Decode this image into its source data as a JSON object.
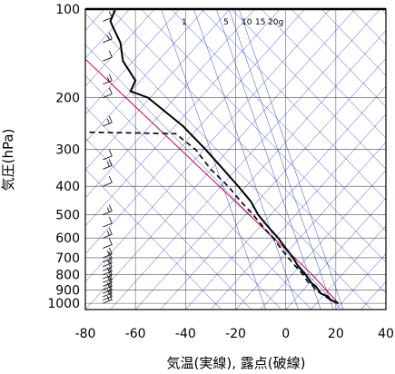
{
  "chart_data": {
    "type": "line",
    "xlabel": "気温(実線), 露点(破線)",
    "ylabel": "気圧(hPa)",
    "xlim": [
      -80,
      40
    ],
    "ylim_hpa": [
      100,
      1050
    ],
    "y_scale": "log",
    "x_ticks": [
      -80,
      -60,
      -40,
      -20,
      0,
      20,
      40
    ],
    "y_ticks": [
      100,
      200,
      300,
      400,
      500,
      600,
      700,
      800,
      900,
      1000
    ],
    "mixing_ratio_labels": [
      "1",
      "5",
      "10",
      "15",
      "20g"
    ],
    "colors": {
      "temperature": "#000000",
      "dewpoint": "#000000",
      "moist_adiabat": "#cc0044",
      "dry_adiabats": "#3344dd",
      "isotherms": "#3344dd",
      "mixing_ratio": "#3344dd",
      "grid": "#000000"
    },
    "series": [
      {
        "name": "気温",
        "style": "solid",
        "points": [
          [
            21,
            1000
          ],
          [
            18,
            975
          ],
          [
            17,
            950
          ],
          [
            14,
            925
          ],
          [
            13,
            900
          ],
          [
            12,
            875
          ],
          [
            10,
            850
          ],
          [
            8,
            800
          ],
          [
            5,
            750
          ],
          [
            3,
            700
          ],
          [
            0,
            650
          ],
          [
            -3,
            600
          ],
          [
            -7,
            550
          ],
          [
            -11,
            500
          ],
          [
            -14,
            450
          ],
          [
            -19,
            400
          ],
          [
            -25,
            350
          ],
          [
            -32,
            300
          ],
          [
            -41,
            250
          ],
          [
            -55,
            200
          ],
          [
            -62,
            190
          ],
          [
            -60,
            175
          ],
          [
            -65,
            150
          ],
          [
            -66,
            130
          ],
          [
            -69,
            115
          ],
          [
            -70,
            110
          ],
          [
            -68,
            100
          ]
        ]
      },
      {
        "name": "露点",
        "style": "dashed",
        "points": [
          [
            21,
            1000
          ],
          [
            18,
            975
          ],
          [
            16,
            950
          ],
          [
            14,
            925
          ],
          [
            12,
            900
          ],
          [
            11,
            875
          ],
          [
            9,
            850
          ],
          [
            7,
            800
          ],
          [
            4,
            750
          ],
          [
            1,
            700
          ],
          [
            -2,
            650
          ],
          [
            -5,
            600
          ],
          [
            -9,
            550
          ],
          [
            -13,
            500
          ],
          [
            -18,
            450
          ],
          [
            -23,
            400
          ],
          [
            -30,
            350
          ],
          [
            -36,
            300
          ],
          [
            -44,
            265
          ],
          [
            -80,
            262
          ]
        ]
      }
    ],
    "wind_barbs_x": -73,
    "wind_barbs_hpa": [
      1000,
      975,
      950,
      925,
      900,
      875,
      850,
      825,
      800,
      775,
      750,
      725,
      700,
      650,
      600,
      550,
      500,
      400,
      350,
      325,
      250,
      200,
      180,
      150,
      130,
      110
    ]
  }
}
